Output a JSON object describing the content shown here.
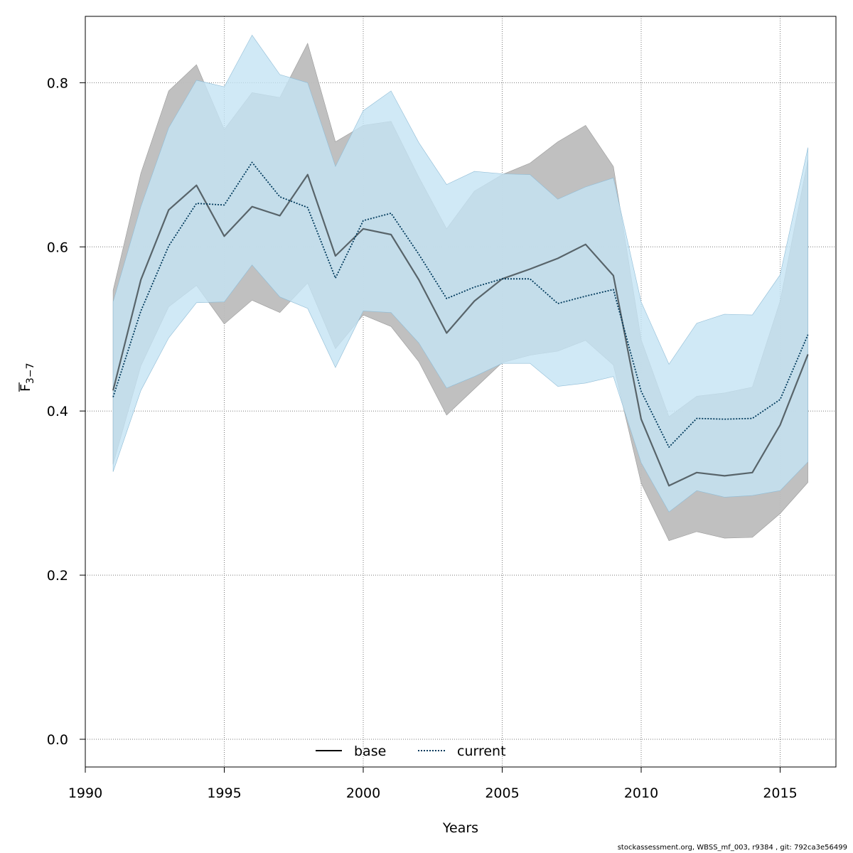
{
  "chart_data": {
    "type": "line",
    "xlabel": "Years",
    "ylabel": "F̅3−7",
    "ylabel_main": "F",
    "ylabel_sub": "3−7",
    "xlim": [
      1990,
      2017
    ],
    "ylim": [
      0.0,
      0.88
    ],
    "x_ticks": [
      1990,
      1995,
      2000,
      2005,
      2010,
      2015
    ],
    "x_tick_labels": [
      "1990",
      "1995",
      "2000",
      "2005",
      "2010",
      "2015"
    ],
    "y_ticks": [
      0.0,
      0.2,
      0.4,
      0.6,
      0.8
    ],
    "y_tick_labels": [
      "0.0",
      "0.2",
      "0.4",
      "0.6",
      "0.8"
    ],
    "grid": true,
    "legend": {
      "position": "bottom-center",
      "entries": [
        "base",
        "current"
      ]
    },
    "x": [
      1991,
      1992,
      1993,
      1994,
      1995,
      1996,
      1997,
      1998,
      1999,
      2000,
      2001,
      2002,
      2003,
      2004,
      2005,
      2006,
      2007,
      2008,
      2009,
      2010,
      2011,
      2012,
      2013,
      2014,
      2015,
      2016
    ],
    "series": [
      {
        "name": "base",
        "style": "solid",
        "color": "#000000",
        "band_color": "#bdbdbd",
        "values": [
          0.425,
          0.56,
          0.645,
          0.675,
          0.613,
          0.649,
          0.638,
          0.688,
          0.589,
          0.622,
          0.615,
          0.56,
          0.495,
          0.534,
          0.561,
          0.573,
          0.586,
          0.603,
          0.565,
          0.39,
          0.309,
          0.325,
          0.321,
          0.325,
          0.383,
          0.469
        ],
        "lower": [
          0.335,
          0.455,
          0.527,
          0.553,
          0.506,
          0.535,
          0.52,
          0.556,
          0.476,
          0.517,
          0.503,
          0.46,
          0.395,
          0.427,
          0.459,
          0.468,
          0.473,
          0.486,
          0.456,
          0.312,
          0.242,
          0.253,
          0.245,
          0.246,
          0.275,
          0.313
        ],
        "upper": [
          0.547,
          0.69,
          0.79,
          0.822,
          0.743,
          0.788,
          0.782,
          0.848,
          0.728,
          0.748,
          0.753,
          0.685,
          0.622,
          0.668,
          0.688,
          0.702,
          0.728,
          0.748,
          0.698,
          0.487,
          0.393,
          0.418,
          0.422,
          0.429,
          0.534,
          0.706
        ]
      },
      {
        "name": "current",
        "style": "dotted",
        "color": "#003a5c",
        "band_color": "#c4e3f4",
        "values": [
          0.417,
          0.522,
          0.601,
          0.653,
          0.651,
          0.703,
          0.661,
          0.648,
          0.562,
          0.632,
          0.641,
          0.591,
          0.537,
          0.551,
          0.561,
          0.561,
          0.531,
          0.54,
          0.548,
          0.424,
          0.356,
          0.391,
          0.39,
          0.391,
          0.414,
          0.493
        ],
        "lower": [
          0.326,
          0.425,
          0.489,
          0.532,
          0.533,
          0.578,
          0.539,
          0.525,
          0.453,
          0.522,
          0.52,
          0.483,
          0.428,
          0.442,
          0.458,
          0.458,
          0.43,
          0.434,
          0.442,
          0.337,
          0.277,
          0.303,
          0.295,
          0.297,
          0.303,
          0.338
        ],
        "upper": [
          0.533,
          0.649,
          0.745,
          0.803,
          0.795,
          0.858,
          0.81,
          0.8,
          0.698,
          0.766,
          0.79,
          0.727,
          0.676,
          0.692,
          0.689,
          0.688,
          0.658,
          0.673,
          0.684,
          0.533,
          0.457,
          0.507,
          0.518,
          0.517,
          0.566,
          0.721
        ]
      }
    ]
  },
  "footer": "stockassessment.org, WBSS_mf_003, r9384 , git: 792ca3e56499"
}
